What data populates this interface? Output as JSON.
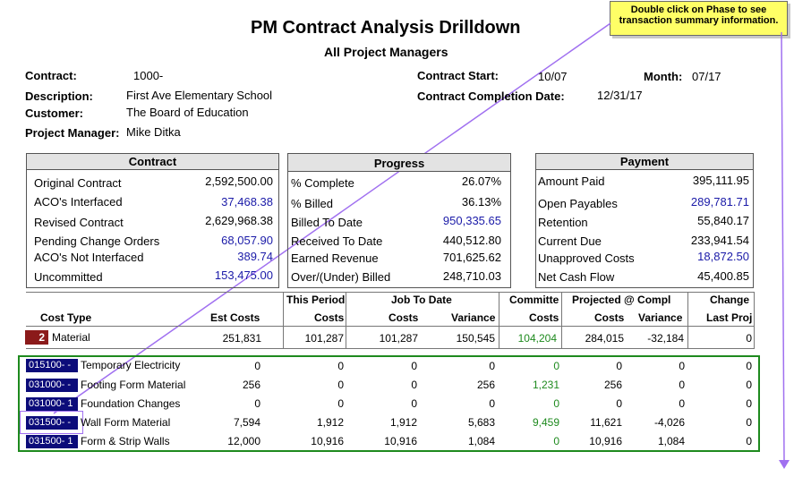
{
  "header": {
    "title": "PM Contract Analysis Drilldown",
    "subtitle": "All Project Managers",
    "hint": "Double click on Phase to see transaction summary information."
  },
  "info": {
    "contract_label": "Contract:",
    "contract_value": "1000-",
    "description_label": "Description:",
    "description_value": "First Ave Elementary School",
    "customer_label": "Customer:",
    "customer_value": "The Board of Education",
    "pm_label": "Project Manager:",
    "pm_value": "Mike Ditka",
    "start_label": "Contract Start:",
    "start_value": "10/07",
    "month_label": "Month:",
    "month_value": "07/17",
    "completion_label": "Contract Completion Date:",
    "completion_value": "12/31/17"
  },
  "contract_box": {
    "title": "Contract",
    "rows": [
      {
        "label": "Original Contract",
        "value": "2,592,500.00",
        "link": false
      },
      {
        "label": "ACO's Interfaced",
        "value": "37,468.38",
        "link": true
      },
      {
        "label": "Revised Contract",
        "value": "2,629,968.38",
        "link": false
      },
      {
        "label": "Pending Change Orders",
        "value": "68,057.90",
        "link": true
      },
      {
        "label": "ACO's Not Interfaced",
        "value": "389.74",
        "link": true
      },
      {
        "label": "Uncommitted",
        "value": "153,475.00",
        "link": true
      }
    ]
  },
  "progress_box": {
    "title": "Progress",
    "rows": [
      {
        "label": "% Complete",
        "value": "26.07%",
        "link": false
      },
      {
        "label": "% Billed",
        "value": "36.13%",
        "link": false
      },
      {
        "label": "Billed To Date",
        "value": "950,335.65",
        "link": true
      },
      {
        "label": "Received To Date",
        "value": "440,512.80",
        "link": false
      },
      {
        "label": "Earned Revenue",
        "value": "701,625.62",
        "link": false
      },
      {
        "label": "Over/(Under) Billed",
        "value": "248,710.03",
        "link": false
      }
    ]
  },
  "payment_box": {
    "title": "Payment",
    "rows": [
      {
        "label": "Amount Paid",
        "value": "395,111.95",
        "link": false
      },
      {
        "label": "Open Payables",
        "value": "289,781.71",
        "link": true
      },
      {
        "label": "Retention",
        "value": "55,840.17",
        "link": false
      },
      {
        "label": "Current Due",
        "value": "233,941.54",
        "link": false
      },
      {
        "label": "Unapproved Costs",
        "value": "18,872.50",
        "link": true
      },
      {
        "label": "Net Cash Flow",
        "value": "45,400.85",
        "link": false
      }
    ]
  },
  "table": {
    "group_headers": {
      "this_period": "This Period",
      "job_to_date": "Job To Date",
      "committed": "Committe",
      "projected": "Projected @ Compl",
      "change": "Change"
    },
    "columns": {
      "cost_type": "Cost Type",
      "est_costs": "Est Costs",
      "period_costs": "Costs",
      "jtd_costs": "Costs",
      "jtd_variance": "Variance",
      "committed_costs": "Costs",
      "proj_costs": "Costs",
      "proj_variance": "Variance",
      "last_proj": "Last Proj"
    },
    "cost_type_row": {
      "code": "2",
      "name": "Material",
      "est": "251,831",
      "period": "101,287",
      "jtd": "101,287",
      "variance": "150,545",
      "committed": "104,204",
      "proj": "284,015",
      "proj_var": "-32,184",
      "change": "0"
    },
    "phases": [
      {
        "phase": "015100-  -",
        "desc": "Temporary Electricity",
        "est": "0",
        "period": "0",
        "jtd": "0",
        "variance": "0",
        "committed": "0",
        "proj": "0",
        "proj_var": "0",
        "change": "0"
      },
      {
        "phase": "031000-  -",
        "desc": "Footing Form Material",
        "est": "256",
        "period": "0",
        "jtd": "0",
        "variance": "256",
        "committed": "1,231",
        "proj": "256",
        "proj_var": "0",
        "change": "0"
      },
      {
        "phase": "031000-  1",
        "desc": "Foundation Changes",
        "est": "0",
        "period": "0",
        "jtd": "0",
        "variance": "0",
        "committed": "0",
        "proj": "0",
        "proj_var": "0",
        "change": "0"
      },
      {
        "phase": "031500-  -",
        "desc": "Wall Form Material",
        "est": "7,594",
        "period": "1,912",
        "jtd": "1,912",
        "variance": "5,683",
        "committed": "9,459",
        "proj": "11,621",
        "proj_var": "-4,026",
        "change": "0"
      },
      {
        "phase": "031500-  1",
        "desc": "Form & Strip Walls",
        "est": "12,000",
        "period": "10,916",
        "jtd": "10,916",
        "variance": "1,084",
        "committed": "0",
        "proj": "10,916",
        "proj_var": "1,084",
        "change": "0"
      }
    ]
  },
  "colors": {
    "link": "#1a1aa8",
    "committed": "#1e8a1e",
    "phase_bg": "#0c0c7a",
    "cost_type_badge": "#8b1a1a",
    "hint_bg": "#ffff66",
    "arrow": "#a070f0",
    "detail_border": "#1e8a1e"
  }
}
